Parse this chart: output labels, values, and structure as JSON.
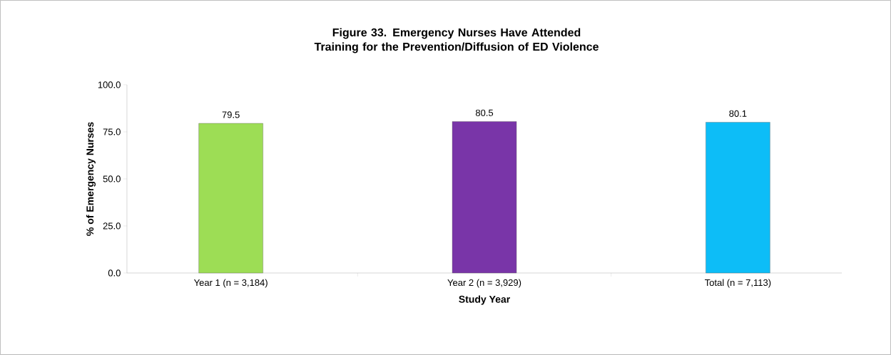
{
  "chart_data": {
    "type": "bar",
    "title": "Figure 33.  Emergency Nurses Have Attended Training for the Prevention/Diffusion of ED Violence",
    "xlabel": "Study Year",
    "ylabel": "% of Emergency Nurses",
    "categories": [
      "Year 1 (n = 3,184)",
      "Year 2 (n = 3,929)",
      "Total (n = 7,113)"
    ],
    "values": [
      79.5,
      80.5,
      80.1
    ],
    "colors": [
      "#9ddd55",
      "#7935a8",
      "#0dbdf7"
    ],
    "ylim": [
      0,
      100
    ],
    "yticks": [
      {
        "value": 0,
        "label": "0.0"
      },
      {
        "value": 25,
        "label": "25.0"
      },
      {
        "value": 50,
        "label": "50.0"
      },
      {
        "value": 75,
        "label": "75.0"
      },
      {
        "value": 100,
        "label": "100.0"
      }
    ],
    "data_labels": true,
    "grid": false
  }
}
